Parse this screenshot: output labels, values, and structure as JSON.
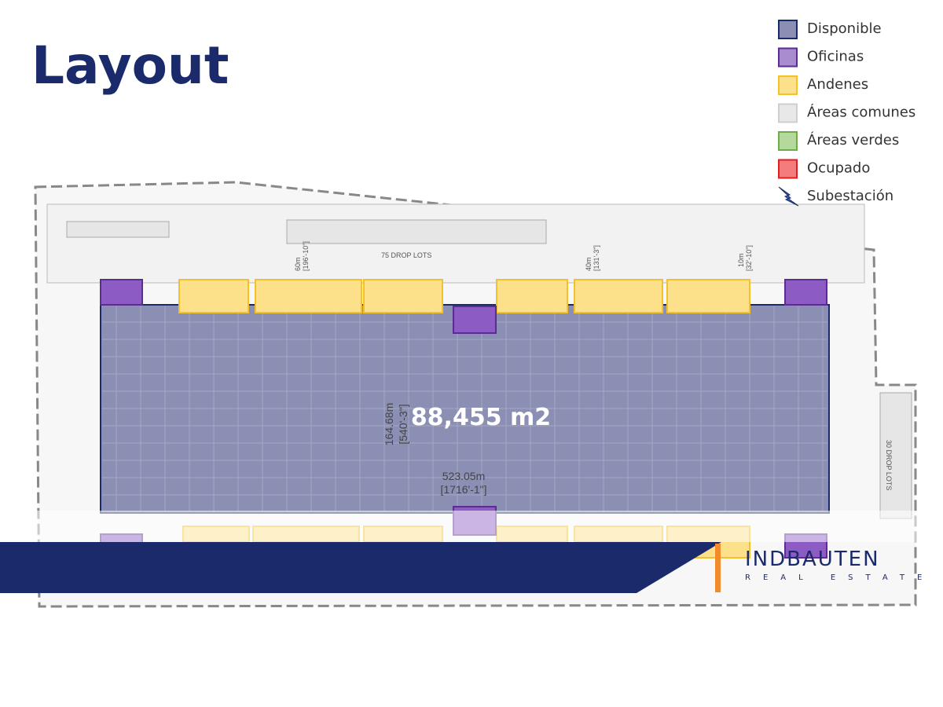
{
  "header": {
    "title": "Layout"
  },
  "legend": [
    {
      "label": "Disponible",
      "color": "#8b8fb3",
      "border": "#1b2a6b"
    },
    {
      "label": "Oficinas",
      "color": "#a98bd0",
      "border": "#5b2c91"
    },
    {
      "label": "Andenes",
      "color": "#fde08a",
      "border": "#f2c12e"
    },
    {
      "label": "Áreas comunes",
      "color": "#e8e8e8",
      "border": "#cfcfcf"
    },
    {
      "label": "Áreas verdes",
      "color": "#b5d99c",
      "border": "#6dab4c"
    },
    {
      "label": "Ocupado",
      "color": "#f47c7c",
      "border": "#e02020"
    },
    {
      "label": "Subestación"
    }
  ],
  "plan": {
    "area": "88,455 m2",
    "labels": {
      "top_lots": "75 DROP LOTS",
      "side_lots": "30 DROP LOTS",
      "depth_m": "164.68m",
      "depth_ft": "[540'-3\"]",
      "width_m": "523.05m",
      "width_ft": "[1716'-1\"]",
      "dim_60m": "60m",
      "dim_60ft": "[196'-10\"]",
      "dim_40m": "40m",
      "dim_40ft": "[131'-3\"]",
      "dim_10m": "10m",
      "dim_10ft": "[32'-10\"]"
    }
  },
  "logo": {
    "name": "INDBAUTEN",
    "tagline": "REAL ESTATE"
  }
}
